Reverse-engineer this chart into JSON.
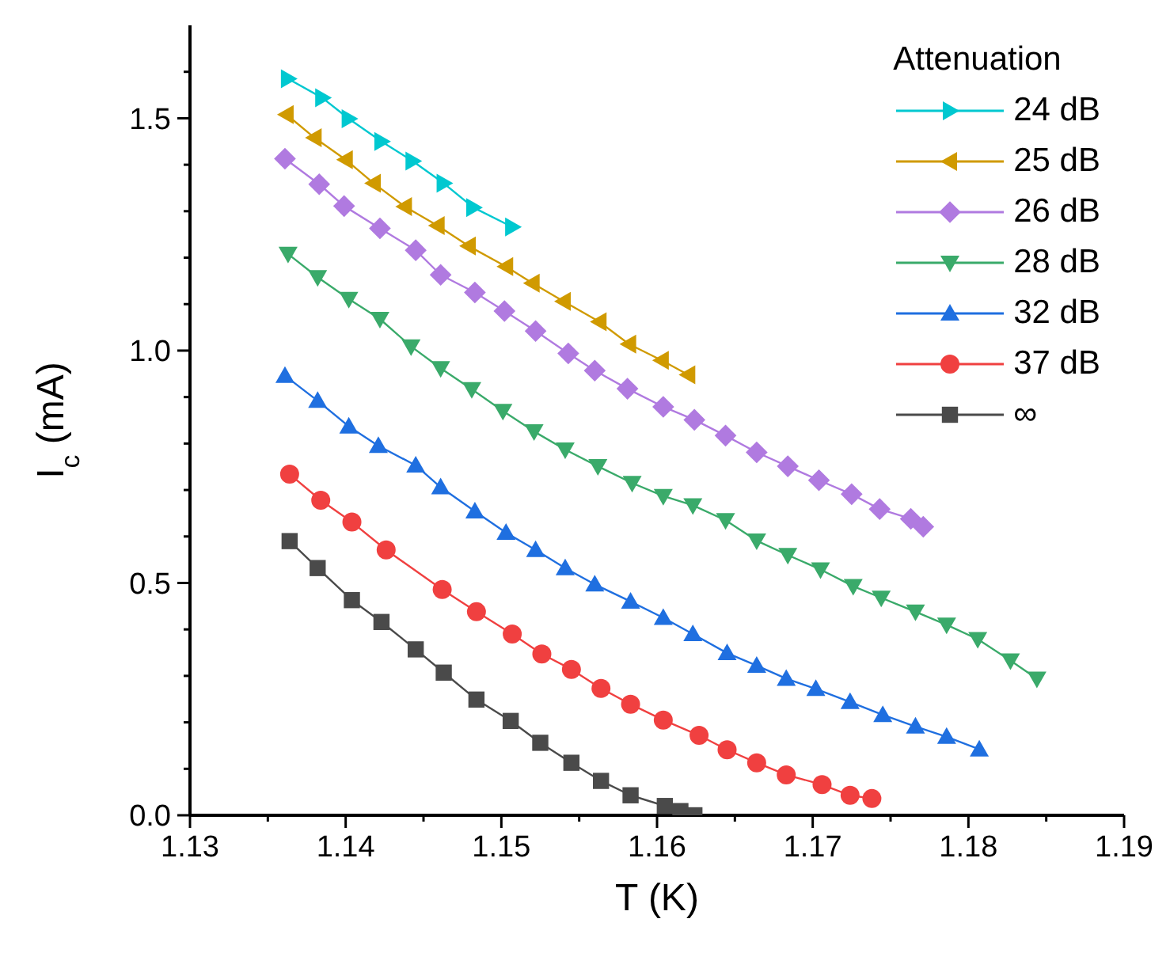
{
  "chart_data": {
    "type": "line",
    "xlabel": "T (K)",
    "ylabel": "I$_{c}$ (mA)",
    "legend_title": "Attenuation",
    "legend": "top right",
    "grid": false,
    "line_style": "solid",
    "xlim": [
      1.13,
      1.19
    ],
    "ylim": [
      0,
      1.7
    ],
    "xticks": [
      1.13,
      {
        "value": 1.135,
        "label": null
      },
      1.14,
      {
        "value": 1.145,
        "label": null
      },
      1.15,
      {
        "value": 1.155,
        "label": null
      },
      1.16,
      {
        "value": 1.165,
        "label": null
      },
      1.17,
      {
        "value": 1.175,
        "label": null
      },
      1.18,
      {
        "value": 1.185,
        "label": null
      },
      1.19
    ],
    "yticks": [
      {
        "value": 0,
        "label": "0.0"
      },
      {
        "value": 0.1,
        "label": null
      },
      {
        "value": 0.2,
        "label": null
      },
      {
        "value": 0.3,
        "label": null
      },
      {
        "value": 0.4,
        "label": null
      },
      {
        "value": 0.5,
        "label": "0.5"
      },
      {
        "value": 0.6,
        "label": null
      },
      {
        "value": 0.7,
        "label": null
      },
      {
        "value": 0.8,
        "label": null
      },
      {
        "value": 0.9,
        "label": null
      },
      {
        "value": 1.0,
        "label": "1.0"
      },
      {
        "value": 1.1,
        "label": null
      },
      {
        "value": 1.2,
        "label": null
      },
      {
        "value": 1.3,
        "label": null
      },
      {
        "value": 1.4,
        "label": null
      },
      {
        "value": 1.5,
        "label": "1.5"
      },
      {
        "value": 1.6,
        "label": null
      }
    ],
    "series": [
      {
        "name": "24 dB",
        "color": "#00c8d0",
        "marker": "triangle-right",
        "x": [
          1.1363,
          1.1385,
          1.1402,
          1.1423,
          1.1443,
          1.1463,
          1.1482,
          1.1507
        ],
        "values": [
          1.585,
          1.544,
          1.499,
          1.45,
          1.408,
          1.36,
          1.308,
          1.266
        ]
      },
      {
        "name": "25 dB",
        "color": "#d09a00",
        "marker": "triangle-left",
        "x": [
          1.1362,
          1.138,
          1.14,
          1.1418,
          1.1438,
          1.1459,
          1.1479,
          1.1503,
          1.152,
          1.154,
          1.1563,
          1.1582,
          1.1603,
          1.162
        ],
        "values": [
          1.508,
          1.458,
          1.411,
          1.36,
          1.31,
          1.269,
          1.225,
          1.181,
          1.145,
          1.106,
          1.062,
          1.014,
          0.979,
          0.948
        ]
      },
      {
        "name": "26 dB",
        "color": "#b07ae0",
        "marker": "diamond",
        "x": [
          1.1361,
          1.1383,
          1.1399,
          1.1422,
          1.1445,
          1.1461,
          1.1483,
          1.1502,
          1.1522,
          1.1543,
          1.156,
          1.1581,
          1.1604,
          1.1624,
          1.1644,
          1.1664,
          1.1684,
          1.1704,
          1.1725,
          1.1743,
          1.1763,
          1.1771
        ],
        "values": [
          1.413,
          1.358,
          1.311,
          1.263,
          1.216,
          1.163,
          1.125,
          1.085,
          1.042,
          0.994,
          0.957,
          0.918,
          0.879,
          0.851,
          0.817,
          0.781,
          0.751,
          0.721,
          0.691,
          0.659,
          0.638,
          0.621
        ]
      },
      {
        "name": "28 dB",
        "color": "#3aaa6a",
        "marker": "triangle-down",
        "x": [
          1.1363,
          1.1382,
          1.1402,
          1.1422,
          1.1442,
          1.1461,
          1.1481,
          1.1501,
          1.1521,
          1.1541,
          1.1562,
          1.1584,
          1.1604,
          1.1623,
          1.1644,
          1.1664,
          1.1684,
          1.1705,
          1.1726,
          1.1744,
          1.1766,
          1.1786,
          1.1806,
          1.1827,
          1.1844
        ],
        "values": [
          1.208,
          1.158,
          1.111,
          1.068,
          1.009,
          0.962,
          0.917,
          0.87,
          0.826,
          0.787,
          0.751,
          0.715,
          0.687,
          0.667,
          0.635,
          0.591,
          0.56,
          0.529,
          0.493,
          0.468,
          0.438,
          0.41,
          0.379,
          0.333,
          0.294
        ]
      },
      {
        "name": "32 dB",
        "color": "#1f6fe0",
        "marker": "triangle",
        "x": [
          1.1361,
          1.1382,
          1.1402,
          1.1421,
          1.1445,
          1.1461,
          1.1483,
          1.1503,
          1.1522,
          1.1541,
          1.156,
          1.1583,
          1.1604,
          1.1623,
          1.1645,
          1.1664,
          1.1683,
          1.1702,
          1.1724,
          1.1745,
          1.1766,
          1.1786,
          1.1807
        ],
        "values": [
          0.946,
          0.892,
          0.837,
          0.795,
          0.753,
          0.706,
          0.654,
          0.608,
          0.571,
          0.532,
          0.497,
          0.46,
          0.425,
          0.39,
          0.349,
          0.322,
          0.294,
          0.272,
          0.244,
          0.216,
          0.191,
          0.169,
          0.142
        ]
      },
      {
        "name": "37 dB",
        "color": "#f04040",
        "marker": "circle",
        "x": [
          1.1364,
          1.1384,
          1.1404,
          1.1426,
          1.1462,
          1.1484,
          1.1507,
          1.1526,
          1.1545,
          1.1564,
          1.1583,
          1.1604,
          1.1627,
          1.1645,
          1.1664,
          1.1683,
          1.1706,
          1.1724,
          1.1738
        ],
        "values": [
          0.734,
          0.678,
          0.631,
          0.571,
          0.486,
          0.438,
          0.39,
          0.347,
          0.314,
          0.273,
          0.239,
          0.205,
          0.172,
          0.141,
          0.113,
          0.087,
          0.066,
          0.043,
          0.036
        ]
      },
      {
        "name": "∞",
        "color": "#4a4a4a",
        "marker": "square",
        "x": [
          1.1364,
          1.1382,
          1.1404,
          1.1423,
          1.1445,
          1.1463,
          1.1484,
          1.1506,
          1.1525,
          1.1545,
          1.1564,
          1.1583,
          1.1605,
          1.1615,
          1.1624
        ],
        "values": [
          0.59,
          0.532,
          0.463,
          0.416,
          0.357,
          0.307,
          0.249,
          0.203,
          0.156,
          0.113,
          0.074,
          0.043,
          0.02,
          0.009,
          0
        ]
      }
    ]
  }
}
